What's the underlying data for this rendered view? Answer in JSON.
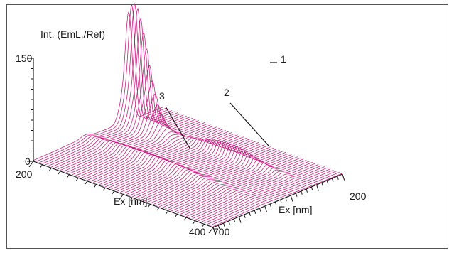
{
  "chart_data": {
    "type": "surface-3d",
    "ylabel": "Int. (EmL./Ref)",
    "zlim": [
      0,
      150
    ],
    "z_ticks": [
      "0",
      "150"
    ],
    "ex_axis": {
      "label": "Ex [nm]",
      "range": [
        200,
        400
      ],
      "ticks": [
        "200",
        "400"
      ]
    },
    "em_axis": {
      "label": "Ex [nm]",
      "range": [
        700,
        200
      ],
      "ticks": [
        "700",
        "200"
      ]
    },
    "peaks": [
      {
        "label": "1",
        "height": 150
      },
      {
        "label": "2",
        "height": 45
      },
      {
        "label": "3",
        "height": 12
      }
    ],
    "line_color": "#c4157a"
  }
}
